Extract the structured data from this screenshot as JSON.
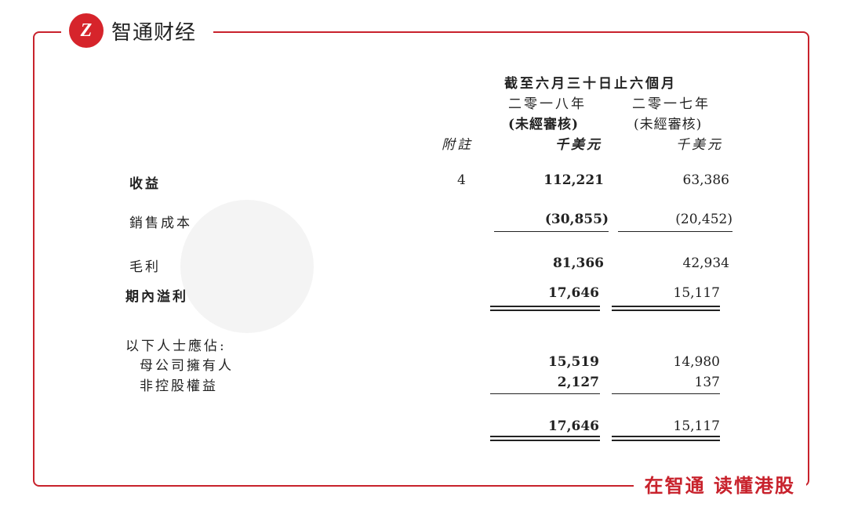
{
  "brand": {
    "logo_mark": "Z",
    "name": "智通财经",
    "slogan": "在智通 读懂港股",
    "accent": "#c8222c"
  },
  "header": {
    "period": "截至六月三十日止六個月",
    "year1": "二零一八年",
    "year2": "二零一七年",
    "audit1": "(未經審核)",
    "audit2": "(未經審核)",
    "note": "附註",
    "unit1": "千美元",
    "unit2": "千美元"
  },
  "rows": [
    {
      "label": "收益",
      "note": "4",
      "v1": "112,221",
      "v2": "63,386"
    },
    {
      "label": "銷售成本",
      "v1": "(30,855)",
      "v2": "(20,452)"
    },
    {
      "label": "毛利",
      "v1": "81,366",
      "v2": "42,934"
    },
    {
      "label": "期內溢利",
      "v1": "17,646",
      "v2": "15,117"
    },
    {
      "label": "以下人士應佔:"
    },
    {
      "label": "母公司擁有人",
      "v1": "15,519",
      "v2": "14,980"
    },
    {
      "label": "非控股權益",
      "v1": "2,127",
      "v2": "137"
    },
    {
      "label": "",
      "v1": "17,646",
      "v2": "15,117"
    }
  ]
}
